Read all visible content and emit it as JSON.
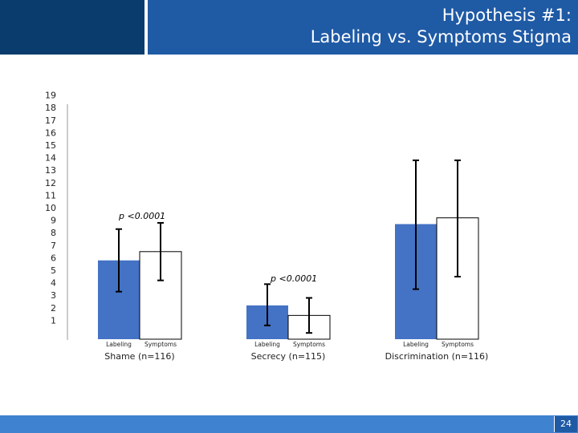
{
  "slide": {
    "title_line1": "Hypothesis #1:",
    "title_line2": "Labeling vs. Symptoms Stigma",
    "page_number": "24"
  },
  "colors": {
    "header": "#1f5aa5",
    "header_dark": "#0a3d6e",
    "footer": "#3f82cf",
    "labeling_bar": "#4472c4",
    "symptoms_bar": "#ffffff"
  },
  "chart_data": {
    "type": "bar",
    "yticks": [
      1,
      2,
      3,
      4,
      5,
      6,
      7,
      8,
      9,
      10,
      11,
      12,
      13,
      14,
      15,
      16,
      17,
      18,
      19
    ],
    "ylim": [
      0,
      19
    ],
    "bar_labels": [
      "Labeling",
      "Symptoms"
    ],
    "groups": [
      {
        "label": "Shame (n=116)",
        "annotation": "p <0.0001",
        "values": [
          6.3,
          7.0
        ],
        "errors_low": [
          3.8,
          4.7
        ],
        "errors_high": [
          8.8,
          9.3
        ]
      },
      {
        "label": "Secrecy (n=115)",
        "annotation": "p <0.0001",
        "values": [
          2.7,
          1.9
        ],
        "errors_low": [
          1.1,
          0.5
        ],
        "errors_high": [
          4.4,
          3.3
        ]
      },
      {
        "label": "Discrimination (n=116)",
        "annotation": "",
        "values": [
          9.2,
          9.7
        ],
        "errors_low": [
          4.0,
          5.0
        ],
        "errors_high": [
          14.3,
          14.3
        ]
      }
    ]
  }
}
